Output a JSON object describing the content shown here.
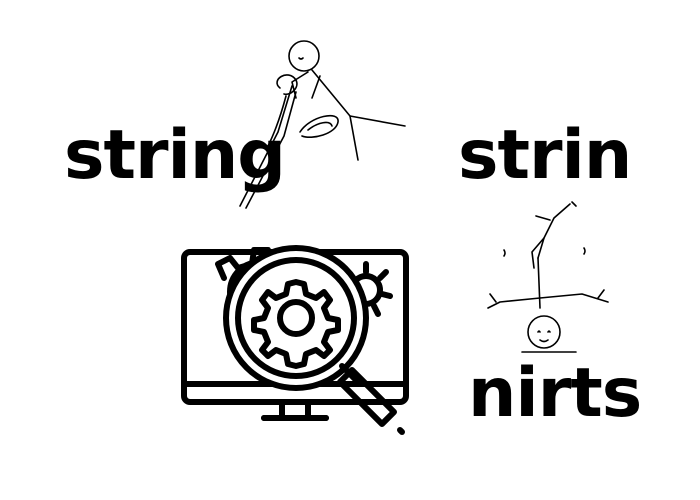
{
  "words": {
    "string": "string",
    "strin": "strin",
    "nirts": "nirts"
  },
  "icons": {
    "scissors_figure": "stick-figure-cutting-with-scissors-icon",
    "gear_monitor": "monitor-with-magnifier-and-gears-icon",
    "handstand_figure": "upside-down-stick-figure-icon"
  },
  "colors": {
    "ink": "#000000",
    "background": "#ffffff"
  }
}
